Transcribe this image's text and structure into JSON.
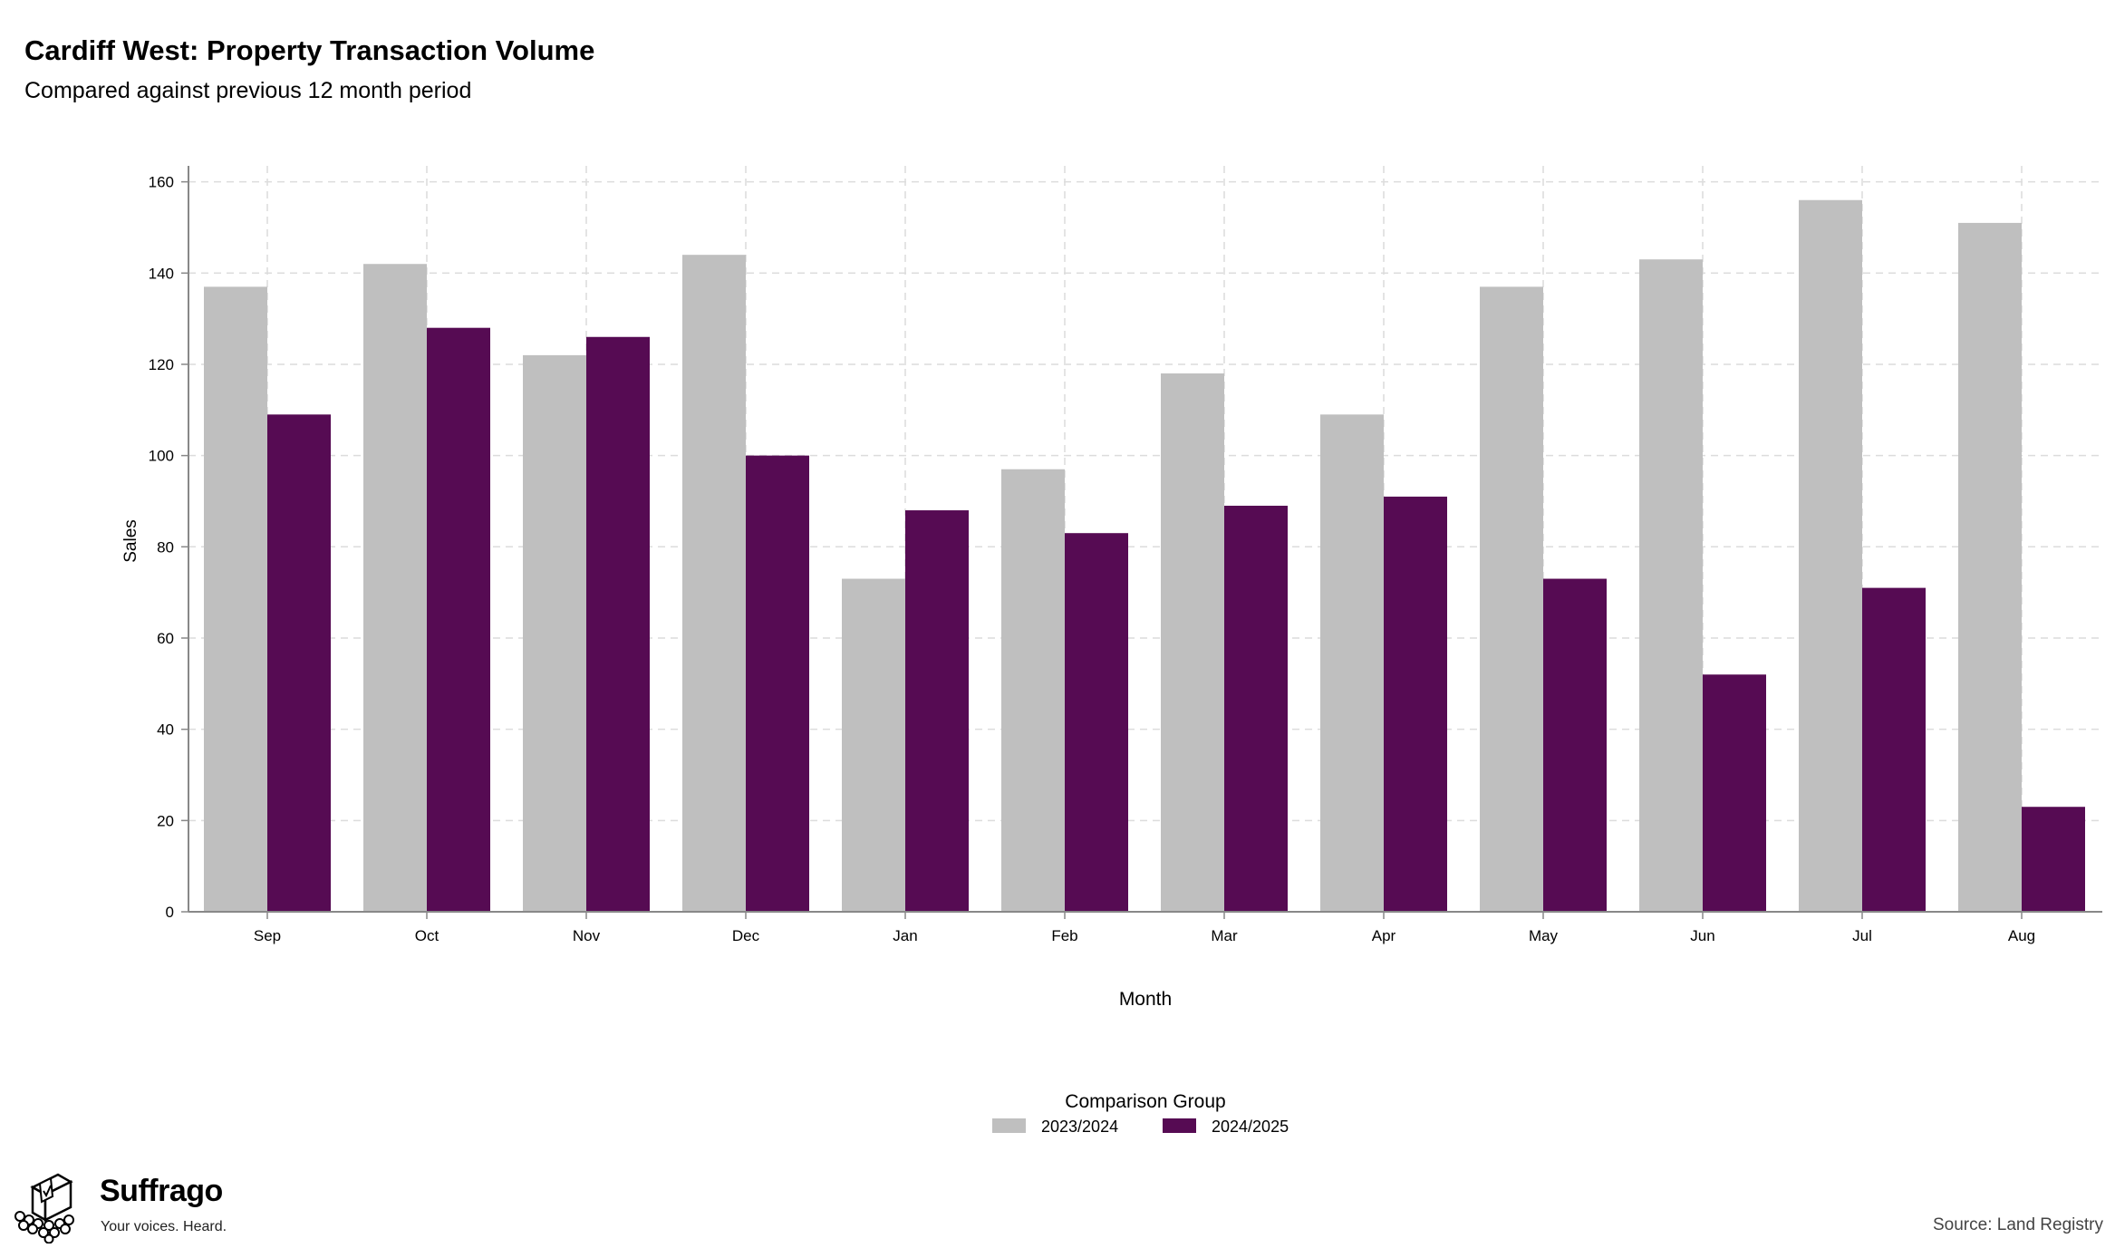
{
  "header": {
    "title": "Cardiff West: Property Transaction Volume",
    "subtitle": "Compared against previous 12 month period"
  },
  "chart_data": {
    "type": "bar",
    "xlabel": "Month",
    "ylabel": "Sales",
    "ylim": [
      0,
      160
    ],
    "yticks": [
      0,
      20,
      40,
      60,
      80,
      100,
      120,
      140,
      160
    ],
    "categories": [
      "Sep",
      "Oct",
      "Nov",
      "Dec",
      "Jan",
      "Feb",
      "Mar",
      "Apr",
      "May",
      "Jun",
      "Jul",
      "Aug"
    ],
    "series": [
      {
        "name": "2023/2024",
        "color": "#bfbfbf",
        "values": [
          137,
          142,
          122,
          144,
          73,
          97,
          118,
          109,
          137,
          143,
          156,
          151
        ]
      },
      {
        "name": "2024/2025",
        "color": "#560b53",
        "values": [
          109,
          128,
          126,
          100,
          88,
          83,
          89,
          91,
          73,
          52,
          71,
          23
        ]
      }
    ],
    "grid": true,
    "legend": {
      "title": "Comparison Group",
      "placement": "bottom"
    }
  },
  "footer": {
    "brand_name": "Suffrago",
    "brand_tagline": "Your voices. Heard.",
    "source": "Source: Land Registry"
  }
}
